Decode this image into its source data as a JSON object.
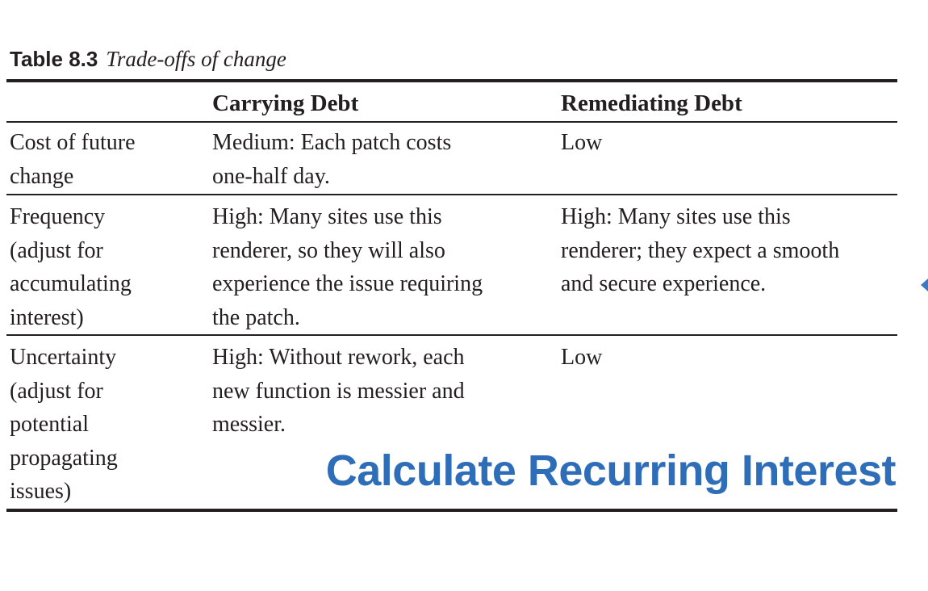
{
  "caption": {
    "number": "Table 8.3",
    "title": "Trade-offs of change"
  },
  "table": {
    "columns": [
      "",
      "Carrying Debt",
      "Remediating Debt"
    ],
    "rows": [
      {
        "label": "Cost of future\nchange",
        "carrying": "Medium: Each patch costs\none-half day.",
        "remediating": "Low"
      },
      {
        "label": "Frequency\n(adjust for\naccumulating\ninterest)",
        "carrying": "High: Many sites use this\nrenderer, so they will also\nexperience the issue requiring\nthe patch.",
        "remediating": "High: Many sites use this\nrenderer; they expect a smooth\nand secure experience."
      },
      {
        "label": "Uncertainty\n(adjust for\npotential\npropagating\nissues)",
        "carrying": "High: Without rework, each\nnew function is messier and\nmessier.",
        "remediating": "Low"
      }
    ]
  },
  "overlay": {
    "text": "Calculate Recurring Interest",
    "color": "#2e6db8"
  },
  "edge_arrow_icon": "chevron-left-icon"
}
